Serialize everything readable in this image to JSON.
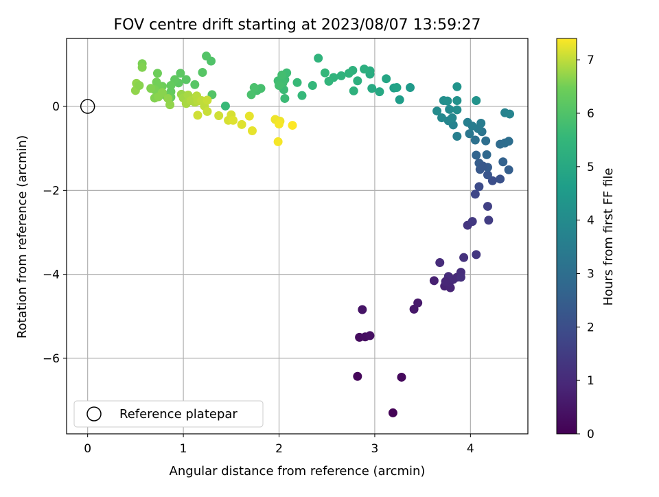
{
  "chart_data": {
    "type": "scatter",
    "title": "FOV centre drift starting at 2023/08/07 13:59:27",
    "xlabel": "Angular distance from reference (arcmin)",
    "ylabel": "Rotation from reference (arcmin)",
    "xlim": [
      -0.22,
      4.6
    ],
    "ylim": [
      -7.8,
      1.62
    ],
    "x_ticks": [
      0,
      1,
      2,
      3,
      4
    ],
    "y_ticks": [
      0,
      -2,
      -4,
      -6
    ],
    "grid": true,
    "legend": {
      "placement": "bottom-left",
      "entries": [
        "Reference platepar"
      ]
    },
    "colorbar": {
      "label": "Hours from first FF file",
      "range": [
        0,
        7.4
      ],
      "ticks": [
        0,
        1,
        2,
        3,
        4,
        5,
        6,
        7
      ],
      "colormap": "viridis"
    },
    "reference_point": {
      "x": 0,
      "y": 0
    },
    "points": [
      [
        3.19,
        -7.3,
        0.05
      ],
      [
        2.82,
        -6.43,
        0.15
      ],
      [
        3.28,
        -6.45,
        0.2
      ],
      [
        2.84,
        -5.5,
        0.25
      ],
      [
        2.9,
        -5.49,
        0.3
      ],
      [
        2.95,
        -5.46,
        0.35
      ],
      [
        2.87,
        -4.84,
        0.45
      ],
      [
        3.41,
        -4.83,
        0.55
      ],
      [
        3.45,
        -4.68,
        0.6
      ],
      [
        3.62,
        -4.15,
        0.75
      ],
      [
        3.73,
        -4.28,
        0.8
      ],
      [
        3.79,
        -4.32,
        0.85
      ],
      [
        3.78,
        -4.19,
        0.9
      ],
      [
        3.86,
        -4.07,
        0.95
      ],
      [
        3.82,
        -4.12,
        1.0
      ],
      [
        3.77,
        -4.05,
        1.05
      ],
      [
        3.68,
        -3.72,
        1.05
      ],
      [
        3.9,
        -3.95,
        1.1
      ],
      [
        3.9,
        -4.07,
        1.15
      ],
      [
        3.74,
        -4.17,
        0.9
      ],
      [
        3.93,
        -3.6,
        1.2
      ],
      [
        4.06,
        -3.53,
        1.35
      ],
      [
        3.97,
        -2.83,
        1.3
      ],
      [
        4.02,
        -2.74,
        1.4
      ],
      [
        4.19,
        -2.71,
        1.5
      ],
      [
        4.18,
        -2.38,
        1.6
      ],
      [
        4.05,
        -2.09,
        1.8
      ],
      [
        4.09,
        -1.91,
        1.9
      ],
      [
        4.23,
        -1.77,
        2.0
      ],
      [
        4.31,
        -1.73,
        2.1
      ],
      [
        4.18,
        -1.63,
        2.2
      ],
      [
        4.1,
        -1.5,
        2.3
      ],
      [
        4.18,
        -1.45,
        2.4
      ],
      [
        4.09,
        -1.35,
        2.45
      ],
      [
        4.13,
        -1.42,
        2.3
      ],
      [
        4.4,
        -1.51,
        2.5
      ],
      [
        4.34,
        -1.32,
        2.6
      ],
      [
        4.06,
        -1.16,
        2.7
      ],
      [
        4.17,
        -1.15,
        2.8
      ],
      [
        4.31,
        -0.9,
        2.9
      ],
      [
        4.36,
        -0.87,
        2.95
      ],
      [
        4.4,
        -0.83,
        3.0
      ],
      [
        4.16,
        -0.82,
        3.0
      ],
      [
        4.05,
        -0.8,
        3.1
      ],
      [
        4.12,
        -0.6,
        3.2
      ],
      [
        3.99,
        -0.65,
        3.3
      ],
      [
        4.08,
        -0.53,
        3.4
      ],
      [
        4.11,
        -0.4,
        3.5
      ],
      [
        3.97,
        -0.38,
        3.6
      ],
      [
        4.02,
        -0.47,
        3.5
      ],
      [
        3.86,
        -0.71,
        3.6
      ],
      [
        3.82,
        -0.44,
        3.7
      ],
      [
        3.77,
        -0.34,
        3.8
      ],
      [
        3.81,
        -0.27,
        3.85
      ],
      [
        3.7,
        -0.27,
        3.9
      ],
      [
        3.65,
        -0.11,
        4.0
      ],
      [
        3.78,
        -0.07,
        3.95
      ],
      [
        3.86,
        -0.08,
        4.05
      ],
      [
        3.72,
        0.14,
        4.1
      ],
      [
        3.76,
        0.13,
        4.15
      ],
      [
        3.86,
        0.14,
        4.2
      ],
      [
        3.86,
        0.47,
        4.3
      ],
      [
        4.06,
        0.14,
        4.25
      ],
      [
        4.36,
        -0.15,
        3.7
      ],
      [
        4.41,
        -0.18,
        3.75
      ],
      [
        3.37,
        0.45,
        4.5
      ],
      [
        3.26,
        0.16,
        4.6
      ],
      [
        3.2,
        0.44,
        4.7
      ],
      [
        3.23,
        0.45,
        4.8
      ],
      [
        3.12,
        0.66,
        4.9
      ],
      [
        3.05,
        0.35,
        5.0
      ],
      [
        2.97,
        0.43,
        5.05
      ],
      [
        2.95,
        0.77,
        5.1
      ],
      [
        2.95,
        0.85,
        5.15
      ],
      [
        2.89,
        0.89,
        5.2
      ],
      [
        2.82,
        0.61,
        5.25
      ],
      [
        2.78,
        0.37,
        5.3
      ],
      [
        2.77,
        0.86,
        5.3
      ],
      [
        2.73,
        0.79,
        5.35
      ],
      [
        2.65,
        0.73,
        5.35
      ],
      [
        2.57,
        0.69,
        5.4
      ],
      [
        2.52,
        0.6,
        5.45
      ],
      [
        2.48,
        0.8,
        5.5
      ],
      [
        2.41,
        1.15,
        5.4
      ],
      [
        2.35,
        0.5,
        5.5
      ],
      [
        2.24,
        0.26,
        5.55
      ],
      [
        2.19,
        0.57,
        5.6
      ],
      [
        2.06,
        0.19,
        5.65
      ],
      [
        2.05,
        0.4,
        5.65
      ],
      [
        2.06,
        0.64,
        5.7
      ],
      [
        2.08,
        0.8,
        5.7
      ],
      [
        2.04,
        0.56,
        5.75
      ],
      [
        1.99,
        0.61,
        5.75
      ],
      [
        2.03,
        0.75,
        5.8
      ],
      [
        2.0,
        0.5,
        5.8
      ],
      [
        1.81,
        0.43,
        5.85
      ],
      [
        1.77,
        0.38,
        5.85
      ],
      [
        1.74,
        0.45,
        5.9
      ],
      [
        1.71,
        0.28,
        5.9
      ],
      [
        1.29,
        1.08,
        6.0
      ],
      [
        1.24,
        1.2,
        6.05
      ],
      [
        1.3,
        0.28,
        6.05
      ],
      [
        1.2,
        0.81,
        6.1
      ],
      [
        1.12,
        0.52,
        6.1
      ],
      [
        1.03,
        0.64,
        6.15
      ],
      [
        0.97,
        0.79,
        6.2
      ],
      [
        0.95,
        0.56,
        6.2
      ],
      [
        0.91,
        0.64,
        6.25
      ],
      [
        0.87,
        0.5,
        6.3
      ],
      [
        0.87,
        0.35,
        6.3
      ],
      [
        0.87,
        0.22,
        6.35
      ],
      [
        0.82,
        0.25,
        6.4
      ],
      [
        0.78,
        0.48,
        6.45
      ],
      [
        0.75,
        0.45,
        6.5
      ],
      [
        0.73,
        0.79,
        6.45
      ],
      [
        0.72,
        0.58,
        6.5
      ],
      [
        0.7,
        0.4,
        6.55
      ],
      [
        0.66,
        0.43,
        6.6
      ],
      [
        0.7,
        0.2,
        6.6
      ],
      [
        0.74,
        0.23,
        6.65
      ],
      [
        0.78,
        0.33,
        6.65
      ],
      [
        0.84,
        0.19,
        6.7
      ],
      [
        0.86,
        0.04,
        6.7
      ],
      [
        0.57,
        1.02,
        6.55
      ],
      [
        0.57,
        0.93,
        6.6
      ],
      [
        0.51,
        0.55,
        6.7
      ],
      [
        0.5,
        0.38,
        6.7
      ],
      [
        0.54,
        0.5,
        6.65
      ],
      [
        0.98,
        0.29,
        6.75
      ],
      [
        1.0,
        0.2,
        6.8
      ],
      [
        1.03,
        0.07,
        6.85
      ],
      [
        1.05,
        0.27,
        6.85
      ],
      [
        1.08,
        0.14,
        6.9
      ],
      [
        1.12,
        0.1,
        6.9
      ],
      [
        1.14,
        0.25,
        6.95
      ],
      [
        1.15,
        0.13,
        6.95
      ],
      [
        1.19,
        0.14,
        7.0
      ],
      [
        1.22,
        0.01,
        7.0
      ],
      [
        1.25,
        -0.12,
        7.05
      ],
      [
        1.25,
        0.15,
        7.05
      ],
      [
        1.15,
        -0.21,
        7.1
      ],
      [
        1.37,
        -0.22,
        7.1
      ],
      [
        1.44,
        0.01,
        5.6
      ],
      [
        1.47,
        -0.33,
        7.15
      ],
      [
        1.5,
        -0.2,
        7.15
      ],
      [
        1.52,
        -0.33,
        7.2
      ],
      [
        1.61,
        -0.43,
        7.2
      ],
      [
        1.69,
        -0.23,
        7.25
      ],
      [
        1.72,
        -0.58,
        7.25
      ],
      [
        1.96,
        -0.31,
        7.3
      ],
      [
        2.01,
        -0.35,
        7.3
      ],
      [
        2.0,
        -0.42,
        7.35
      ],
      [
        1.99,
        -0.84,
        7.35
      ],
      [
        2.14,
        -0.45,
        7.4
      ]
    ]
  }
}
